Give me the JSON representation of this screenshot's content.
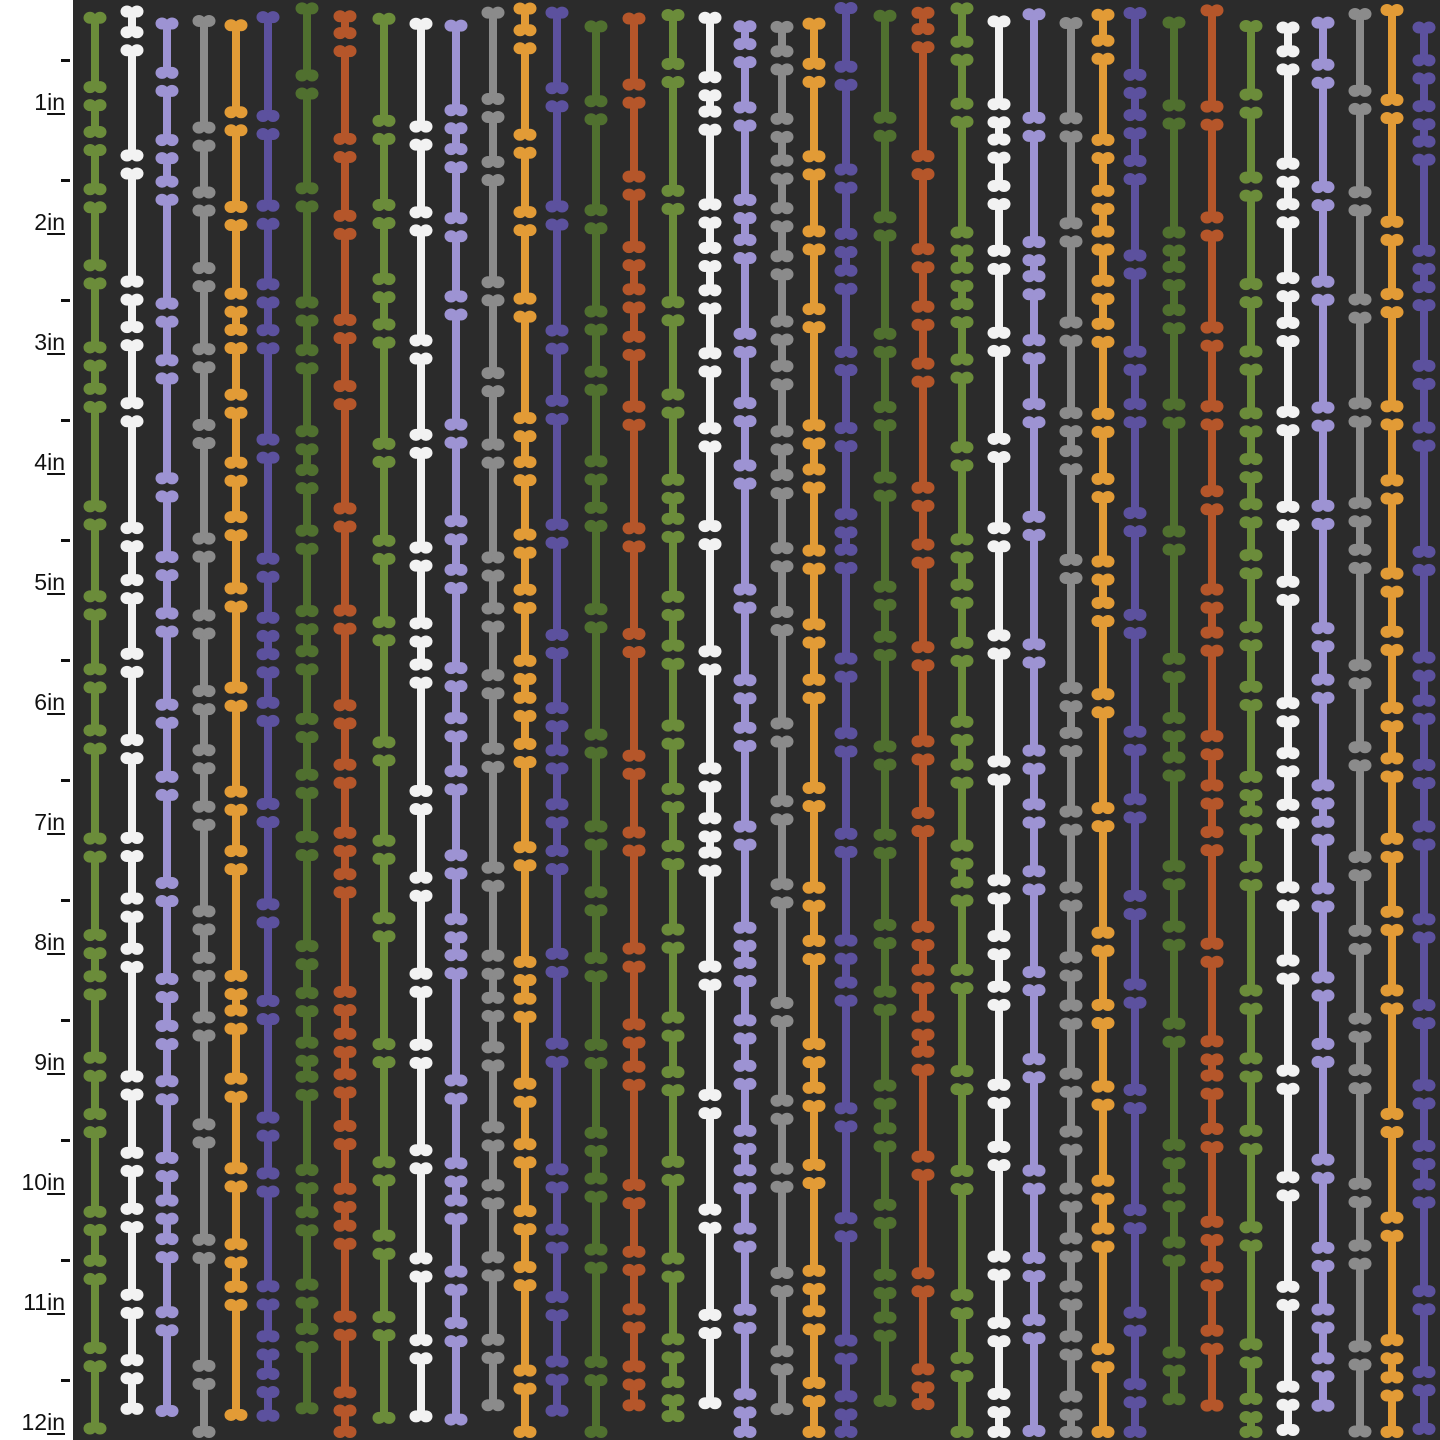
{
  "ruler": {
    "labels": [
      "1in",
      "2in",
      "3in",
      "4in",
      "5in",
      "6in",
      "7in",
      "8in",
      "9in",
      "10in",
      "11in",
      "12in"
    ],
    "unit": "in"
  },
  "fabric": {
    "background": "#2b2b2b",
    "motif": "bone-stripes",
    "column_colors": [
      "#6b8c3a",
      "#f2f2f2",
      "#9d93d3",
      "#8b8b8b",
      "#e29b36",
      "#5c519e",
      "#50702f",
      "#b5562a"
    ]
  }
}
